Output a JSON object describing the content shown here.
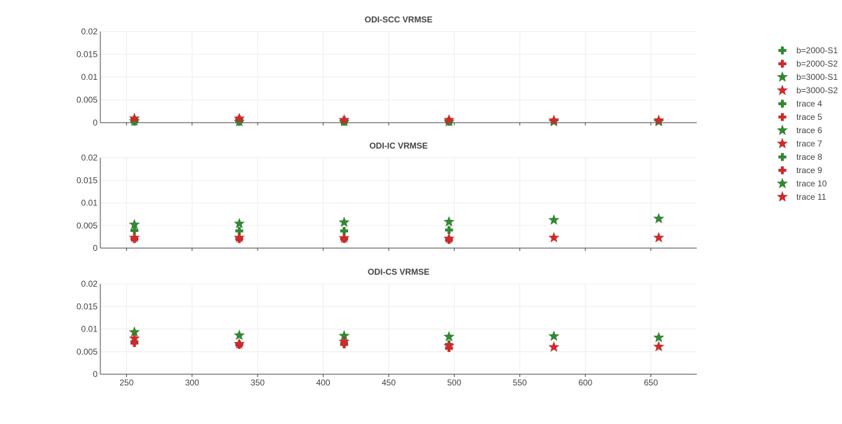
{
  "chart_data": [
    {
      "type": "scatter",
      "title": "ODI-SCC VRMSE",
      "xlim": [
        230,
        685
      ],
      "ylim": [
        0,
        0.02
      ],
      "xticks": [
        "250",
        "300",
        "350",
        "400",
        "450",
        "500",
        "550",
        "600",
        "650"
      ],
      "yticks": [
        "0",
        "0.005",
        "0.01",
        "0.015",
        "0.02"
      ],
      "show_x_tick_labels": false,
      "grid": true,
      "series": [
        {
          "name": "b=2000-S1",
          "symbol": "cross",
          "color": "#2e8b2e",
          "x": [
            256,
            336,
            416,
            496
          ],
          "y": [
            0.0002,
            0.0002,
            0.0002,
            0.0002
          ]
        },
        {
          "name": "b=2000-S2",
          "symbol": "cross",
          "color": "#d62728",
          "x": [
            256,
            336,
            416,
            496
          ],
          "y": [
            0.0006,
            0.0007,
            0.0005,
            0.0004
          ]
        },
        {
          "name": "b=3000-S1",
          "symbol": "star",
          "color": "#2e8b2e",
          "x": [
            256,
            336,
            416,
            496,
            576,
            656
          ],
          "y": [
            0.0003,
            0.0002,
            0.0002,
            0.0002,
            0.0002,
            0.0002
          ]
        },
        {
          "name": "b=3000-S2",
          "symbol": "star",
          "color": "#d62728",
          "x": [
            256,
            336,
            416,
            496,
            576,
            656
          ],
          "y": [
            0.0009,
            0.0009,
            0.0006,
            0.0006,
            0.0005,
            0.0005
          ]
        }
      ]
    },
    {
      "type": "scatter",
      "title": "ODI-IC VRMSE",
      "xlim": [
        230,
        685
      ],
      "ylim": [
        0,
        0.02
      ],
      "xticks": [
        "250",
        "300",
        "350",
        "400",
        "450",
        "500",
        "550",
        "600",
        "650"
      ],
      "yticks": [
        "0",
        "0.005",
        "0.01",
        "0.015",
        "0.02"
      ],
      "show_x_tick_labels": false,
      "grid": true,
      "series": [
        {
          "name": "trace 4",
          "symbol": "cross",
          "color": "#2e8b2e",
          "x": [
            256,
            336,
            416,
            496
          ],
          "y": [
            0.0039,
            0.0038,
            0.0038,
            0.004
          ]
        },
        {
          "name": "trace 5",
          "symbol": "cross",
          "color": "#d62728",
          "x": [
            256,
            336,
            416,
            496
          ],
          "y": [
            0.002,
            0.002,
            0.002,
            0.0018
          ]
        },
        {
          "name": "trace 6",
          "symbol": "star",
          "color": "#2e8b2e",
          "x": [
            256,
            336,
            416,
            496,
            576,
            656
          ],
          "y": [
            0.0052,
            0.0054,
            0.0057,
            0.0058,
            0.0062,
            0.0065
          ]
        },
        {
          "name": "trace 7",
          "symbol": "star",
          "color": "#d62728",
          "x": [
            256,
            336,
            416,
            496,
            576,
            656
          ],
          "y": [
            0.0023,
            0.0023,
            0.0022,
            0.0021,
            0.0023,
            0.0023
          ]
        }
      ]
    },
    {
      "type": "scatter",
      "title": "ODI-CS VRMSE",
      "xlim": [
        230,
        685
      ],
      "ylim": [
        0,
        0.02
      ],
      "xticks": [
        "250",
        "300",
        "350",
        "400",
        "450",
        "500",
        "550",
        "600",
        "650"
      ],
      "yticks": [
        "0",
        "0.005",
        "0.01",
        "0.015",
        "0.02"
      ],
      "show_x_tick_labels": true,
      "grid": true,
      "series": [
        {
          "name": "trace 8",
          "symbol": "cross",
          "color": "#2e8b2e",
          "x": [
            256,
            336,
            416,
            496
          ],
          "y": [
            0.0072,
            0.0066,
            0.0068,
            0.0066
          ]
        },
        {
          "name": "trace 9",
          "symbol": "cross",
          "color": "#d62728",
          "x": [
            256,
            336,
            416,
            496
          ],
          "y": [
            0.0069,
            0.0065,
            0.0066,
            0.0058
          ]
        },
        {
          "name": "trace 10",
          "symbol": "star",
          "color": "#2e8b2e",
          "x": [
            256,
            336,
            416,
            496,
            576,
            656
          ],
          "y": [
            0.0093,
            0.0086,
            0.0085,
            0.0083,
            0.0084,
            0.0081
          ]
        },
        {
          "name": "trace 11",
          "symbol": "star",
          "color": "#d62728",
          "x": [
            256,
            336,
            416,
            496,
            576,
            656
          ],
          "y": [
            0.0079,
            0.0067,
            0.0072,
            0.0063,
            0.006,
            0.0061
          ]
        }
      ]
    }
  ],
  "legend": {
    "placement": "right",
    "items": [
      {
        "label": "b=2000-S1",
        "symbol": "cross",
        "color": "#2e8b2e"
      },
      {
        "label": "b=2000-S2",
        "symbol": "cross",
        "color": "#d62728"
      },
      {
        "label": "b=3000-S1",
        "symbol": "star",
        "color": "#2e8b2e"
      },
      {
        "label": "b=3000-S2",
        "symbol": "star",
        "color": "#d62728"
      },
      {
        "label": "trace 4",
        "symbol": "cross",
        "color": "#2e8b2e"
      },
      {
        "label": "trace 5",
        "symbol": "cross",
        "color": "#d62728"
      },
      {
        "label": "trace 6",
        "symbol": "star",
        "color": "#2e8b2e"
      },
      {
        "label": "trace 7",
        "symbol": "star",
        "color": "#d62728"
      },
      {
        "label": "trace 8",
        "symbol": "cross",
        "color": "#2e8b2e"
      },
      {
        "label": "trace 9",
        "symbol": "cross",
        "color": "#d62728"
      },
      {
        "label": "trace 10",
        "symbol": "star",
        "color": "#2e8b2e"
      },
      {
        "label": "trace 11",
        "symbol": "star",
        "color": "#d62728"
      }
    ]
  }
}
